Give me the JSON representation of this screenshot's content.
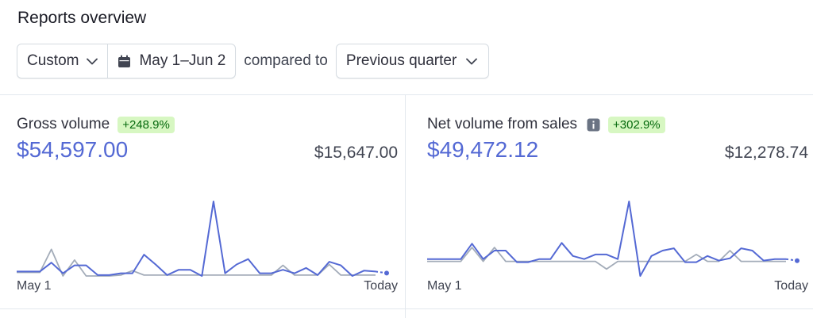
{
  "header": {
    "title": "Reports overview"
  },
  "filters": {
    "range_type": "Custom",
    "date_range": "May 1–Jun 2",
    "compared_to_label": "compared to",
    "comparison": "Previous quarter"
  },
  "colors": {
    "accent": "#5469d4",
    "comparison_line": "#a3acb9",
    "badge_bg": "#d7f7c2",
    "badge_text": "#05690d"
  },
  "cards": [
    {
      "label": "Gross volume",
      "change": "+248.9%",
      "value": "$54,597.00",
      "compare_value": "$15,647.00",
      "x_start": "May 1",
      "x_end": "Today",
      "chart_data": {
        "type": "line",
        "series": [
          {
            "values": [
              0.5,
              0.5,
              0.5,
              1.5,
              0.3,
              1.2,
              1.2,
              0.1,
              0.1,
              0.3,
              0.3,
              2.4,
              1.3,
              0.1,
              0.7,
              0.7,
              0,
              8.4,
              0.3,
              1.3,
              1.9,
              0.3,
              0.3,
              0.7,
              0.3,
              0.9,
              0.1,
              1.6,
              1.2,
              0,
              0.6,
              0.5
            ]
          },
          {
            "values": [
              0.4,
              0.4,
              0.4,
              3.0,
              0,
              1.8,
              0,
              0,
              0,
              0.1,
              0.6,
              0.1,
              0.1,
              0.1,
              0.1,
              0.1,
              0.1,
              0.1,
              0.1,
              0.1,
              0.1,
              0.1,
              0.1,
              1.2,
              0.1,
              0.1,
              0.1,
              1.3,
              0.1,
              0.1,
              0.1,
              0.1
            ]
          }
        ]
      }
    },
    {
      "label": "Net volume from sales",
      "change": "+302.9%",
      "value": "$49,472.12",
      "compare_value": "$12,278.74",
      "x_start": "May 1",
      "x_end": "Today",
      "chart_data": {
        "type": "line",
        "series": [
          {
            "values": [
              0.9,
              0.9,
              0.9,
              0.9,
              2.9,
              0.9,
              2.0,
              2.0,
              0.5,
              0.5,
              0.9,
              0.9,
              3.0,
              1.3,
              0.9,
              1.5,
              1.5,
              0.9,
              8.4,
              -1.3,
              1.3,
              2.0,
              2.3,
              0.5,
              0.5,
              1.3,
              0.7,
              1.0,
              2.3,
              2.0,
              0.7,
              0.9,
              0.9
            ]
          },
          {
            "values": [
              0.6,
              0.6,
              0.6,
              0.6,
              2.4,
              0.6,
              2.4,
              0.6,
              0.6,
              0.6,
              0.6,
              0.6,
              0.6,
              0.6,
              0.6,
              0.6,
              -0.4,
              0.6,
              0.6,
              0.6,
              0.6,
              0.6,
              0.6,
              0.6,
              1.5,
              0.6,
              0.6,
              2.0,
              0.6,
              0.6,
              0.6,
              0.6,
              0.6
            ]
          }
        ]
      }
    }
  ]
}
